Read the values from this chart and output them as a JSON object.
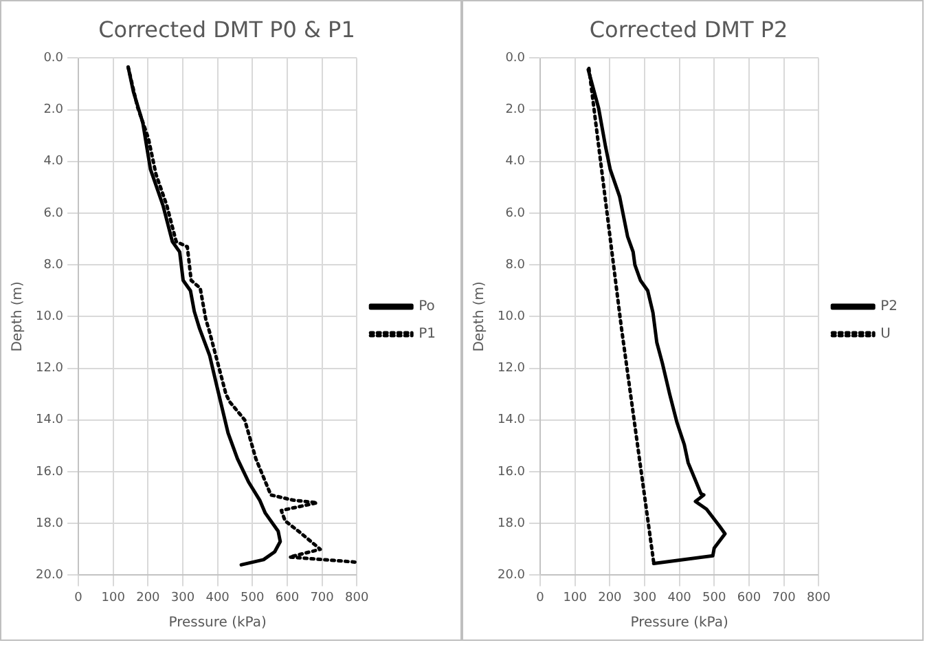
{
  "chart_data": [
    {
      "type": "line",
      "title": "Corrected DMT P0 & P1",
      "xlabel": "Pressure (kPa)",
      "ylabel": "Depth (m)",
      "xlim": [
        0,
        800
      ],
      "xticks": [
        0,
        100,
        200,
        300,
        400,
        500,
        600,
        700,
        800
      ],
      "ylim": [
        20,
        0
      ],
      "yticks": [
        {
          "value": 0,
          "label": "0.0"
        },
        {
          "value": 2,
          "label": "2.0"
        },
        {
          "value": 4,
          "label": "4.0"
        },
        {
          "value": 6,
          "label": "6.0"
        },
        {
          "value": 8,
          "label": "8.0"
        },
        {
          "value": 10,
          "label": "10.0"
        },
        {
          "value": 12,
          "label": "12.0"
        },
        {
          "value": 14,
          "label": "14.0"
        },
        {
          "value": 16,
          "label": "16.0"
        },
        {
          "value": 18,
          "label": "18.0"
        },
        {
          "value": 20,
          "label": "20.0"
        }
      ],
      "grid": true,
      "legend": "right",
      "marker": "none",
      "series": [
        {
          "name": "Po",
          "color": "#000000",
          "line_style": "solid",
          "x": [
            143,
            158,
            185,
            207,
            243,
            270,
            291,
            301,
            322,
            333,
            348,
            377,
            398,
            430,
            457,
            489,
            521,
            537,
            574,
            580,
            564,
            532,
            468
          ],
          "values": [
            0.35,
            1.3,
            2.5,
            4.3,
            5.7,
            7.1,
            7.5,
            8.6,
            9.0,
            9.8,
            10.46,
            11.5,
            12.7,
            14.5,
            15.5,
            16.4,
            17.1,
            17.6,
            18.3,
            18.7,
            19.1,
            19.4,
            19.6
          ]
        },
        {
          "name": "P1",
          "color": "#000000",
          "line_style": "dotted",
          "x": [
            143,
            170,
            201,
            223,
            254,
            281,
            313,
            324,
            350,
            366,
            377,
            424,
            435,
            478,
            510,
            553,
            617,
            686,
            583,
            594,
            637,
            695,
            607,
            800
          ],
          "values": [
            0.35,
            1.9,
            3.1,
            4.5,
            5.7,
            7.1,
            7.3,
            8.6,
            8.9,
            10.1,
            10.6,
            13.0,
            13.3,
            14.0,
            15.5,
            16.9,
            17.1,
            17.2,
            17.5,
            17.9,
            18.35,
            19.0,
            19.3,
            19.5
          ]
        }
      ]
    },
    {
      "type": "line",
      "title": "Corrected DMT P2",
      "xlabel": "Pressure (kPa)",
      "ylabel": "Depth (m)",
      "xlim": [
        0,
        800
      ],
      "xticks": [
        0,
        100,
        200,
        300,
        400,
        500,
        600,
        700,
        800
      ],
      "ylim": [
        20,
        0
      ],
      "yticks": [
        {
          "value": 0,
          "label": "0.0"
        },
        {
          "value": 2,
          "label": "2.0"
        },
        {
          "value": 4,
          "label": "4.0"
        },
        {
          "value": 6,
          "label": "6.0"
        },
        {
          "value": 8,
          "label": "8.0"
        },
        {
          "value": 10,
          "label": "10.0"
        },
        {
          "value": 12,
          "label": "12.0"
        },
        {
          "value": 14,
          "label": "14.0"
        },
        {
          "value": 16,
          "label": "16.0"
        },
        {
          "value": 18,
          "label": "18.0"
        },
        {
          "value": 20,
          "label": "20.0"
        }
      ],
      "grid": true,
      "legend": "right",
      "marker": "none",
      "series": [
        {
          "name": "P2",
          "color": "#000000",
          "line_style": "solid",
          "x": [
            138,
            152,
            168,
            188,
            201,
            228,
            251,
            267,
            272,
            288,
            309,
            324,
            335,
            351,
            372,
            393,
            414,
            425,
            462,
            470,
            446,
            478,
            515,
            531,
            500,
            496,
            326
          ],
          "values": [
            0.45,
            1.15,
            1.95,
            3.45,
            4.3,
            5.35,
            6.9,
            7.5,
            8.0,
            8.6,
            9.0,
            9.85,
            11.0,
            11.8,
            13.0,
            14.1,
            14.95,
            15.65,
            16.85,
            16.9,
            17.15,
            17.45,
            18.1,
            18.4,
            18.95,
            19.25,
            19.55
          ]
        },
        {
          "name": "U",
          "color": "#000000",
          "line_style": "dotted",
          "x": [
            140,
            233,
            326
          ],
          "values": [
            0.4,
            10.4,
            19.5
          ]
        }
      ]
    }
  ]
}
